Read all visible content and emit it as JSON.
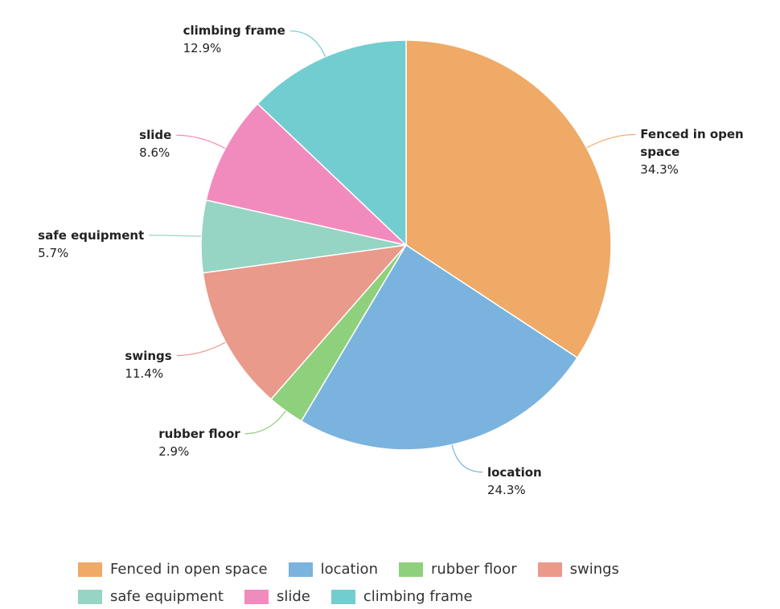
{
  "chart_data": {
    "type": "pie",
    "categories": [
      "Fenced in open space",
      "location",
      "rubber floor",
      "swings",
      "safe equipment",
      "slide",
      "climbing frame"
    ],
    "values": [
      34.3,
      24.3,
      2.9,
      11.4,
      5.7,
      8.6,
      12.9
    ],
    "value_labels": [
      "34.3%",
      "24.3%",
      "2.9%",
      "11.4%",
      "5.7%",
      "8.6%",
      "12.9%"
    ],
    "colors": [
      "#eeaa66",
      "#7ab3de",
      "#8fd07c",
      "#e99a8a",
      "#96d4c4",
      "#f28bbd",
      "#72cdd0"
    ],
    "legend": "bottom"
  }
}
